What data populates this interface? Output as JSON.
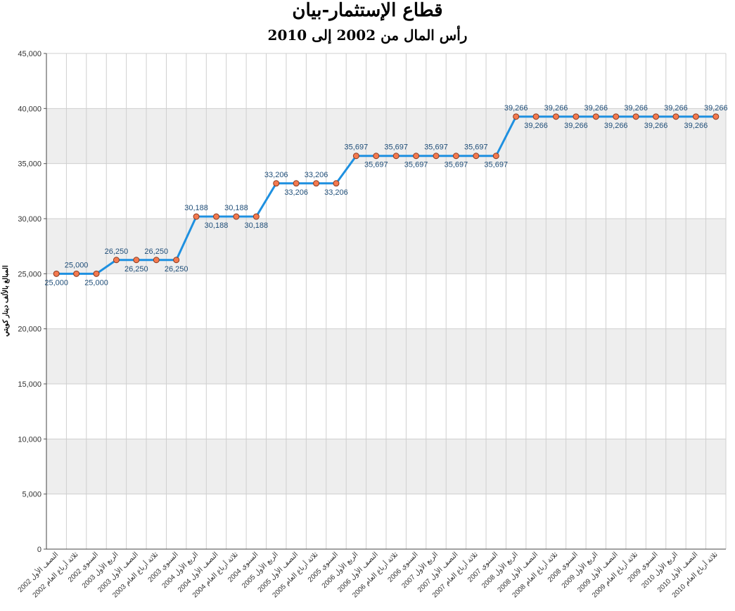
{
  "header": {
    "title": "قطاع الإستثمار-بيان",
    "subtitle": "رأس المال من 2002 إلى 2010"
  },
  "chart_data": {
    "type": "line",
    "title": "قطاع الإستثمار-بيان",
    "subtitle": "رأس المال من 2002 إلى 2010",
    "ylabel": "المبالغ بالألف دينار كويتي",
    "xlabel": "",
    "ylim": [
      0,
      45000
    ],
    "yticks": [
      0,
      5000,
      10000,
      15000,
      20000,
      25000,
      30000,
      35000,
      40000,
      45000
    ],
    "ytick_labels": [
      "0",
      "5,000",
      "10,000",
      "15,000",
      "20,000",
      "25,000",
      "30,000",
      "35,000",
      "40,000",
      "45,000"
    ],
    "grid": true,
    "categories": [
      "النصف الأول 2002",
      "ثلاثة أرباع العام 2002",
      "السنوي 2002",
      "الربع الأول 2003",
      "النصف الأول 2003",
      "ثلاثة أرباع العام 2003",
      "السنوي 2003",
      "الربع الأول 2004",
      "النصف الأول 2004",
      "ثلاثة أرباع العام 2004",
      "السنوي 2004",
      "الربع الأول 2005",
      "النصف الأول 2005",
      "ثلاثة أرباع العام 2005",
      "السنوي 2005",
      "الربع الأول 2006",
      "النصف الأول 2006",
      "ثلاثة أرباع العام 2006",
      "السنوي 2006",
      "الربع الأول 2007",
      "النصف الأول 2007",
      "ثلاثة أرباع العام 2007",
      "السنوي 2007",
      "الربع الأول 2008",
      "النصف الأول 2008",
      "ثلاثة أرباع العام 2008",
      "السنوي 2008",
      "الربع الأول 2009",
      "النصف الأول 2009",
      "ثلاثة أرباع العام 2009",
      "السنوي 2009",
      "الربع الأول 2010",
      "النصف الأول 2010",
      "ثلاثة أرباع العام 2010"
    ],
    "series": [
      {
        "values": [
          25000,
          25000,
          25000,
          26250,
          26250,
          26250,
          26250,
          30188,
          30188,
          30188,
          30188,
          33206,
          33206,
          33206,
          33206,
          35697,
          35697,
          35697,
          35697,
          35697,
          35697,
          35697,
          35697,
          39266,
          39266,
          39266,
          39266,
          39266,
          39266,
          39266,
          39266,
          39266,
          39266,
          39266
        ],
        "labels": [
          "25,000",
          "25,000",
          "25,000",
          "26,250",
          "26,250",
          "26,250",
          "26,250",
          "30,188",
          "30,188",
          "30,188",
          "30,188",
          "33,206",
          "33,206",
          "33,206",
          "33,206",
          "35,697",
          "35,697",
          "35,697",
          "35,697",
          "35,697",
          "35,697",
          "35,697",
          "35,697",
          "39,266",
          "39,266",
          "39,266",
          "39,266",
          "39,266",
          "39,266",
          "39,266",
          "39,266",
          "39,266",
          "39,266",
          "39,266"
        ],
        "line_color": "#1e90e0",
        "marker_color": "#f47a50"
      }
    ],
    "band_color": "#eeeeee"
  }
}
